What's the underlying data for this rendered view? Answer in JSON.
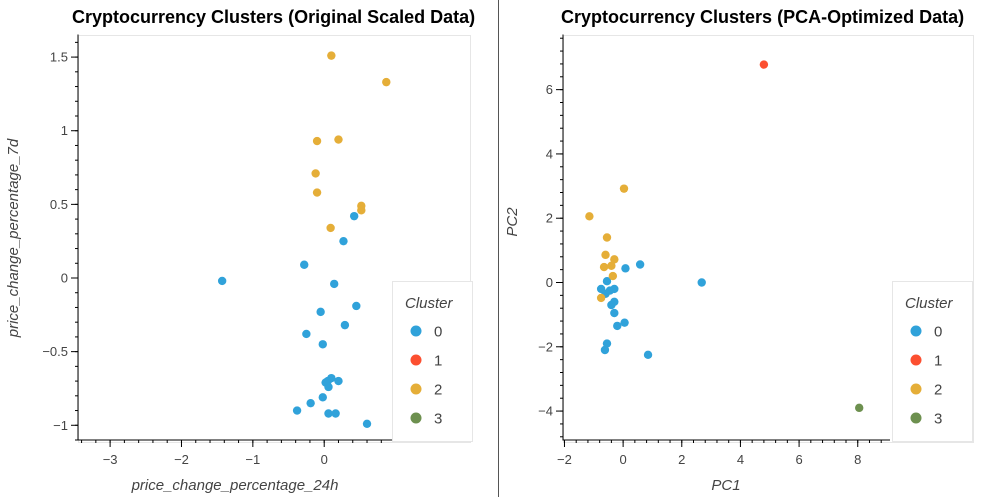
{
  "colors": {
    "cluster_0": "#30a2da",
    "cluster_1": "#fc4f30",
    "cluster_2": "#e5ae38",
    "cluster_3": "#6d904f",
    "axis": "#000000",
    "frame": "#e6e6e6",
    "divider": "#555555"
  },
  "chart_data": [
    {
      "type": "scatter",
      "title": "Cryptocurrency Clusters (Original Scaled Data)",
      "xlabel": "price_change_percentage_24h",
      "ylabel": "price_change_percentage_7d",
      "xlim": [
        -3.45,
        0.95
      ],
      "ylim": [
        -1.1,
        1.65
      ],
      "xticks": [
        -3,
        -2,
        -1,
        0
      ],
      "yticks": [
        -1,
        -0.5,
        0,
        0.5,
        1,
        1.5
      ],
      "xtick_labels": [
        "−3",
        "−2",
        "−1",
        "0"
      ],
      "ytick_labels": [
        "−1",
        "−0.5",
        "0",
        "0.5",
        "1",
        "1.5"
      ],
      "legend": {
        "title": "Cluster",
        "position": "right",
        "labels": [
          "0",
          "1",
          "2",
          "3"
        ]
      },
      "points": [
        {
          "x": -1.43,
          "y": -0.02,
          "cluster": 0
        },
        {
          "x": -0.28,
          "y": 0.09,
          "cluster": 0
        },
        {
          "x": 0.42,
          "y": 0.42,
          "cluster": 0
        },
        {
          "x": 0.27,
          "y": 0.25,
          "cluster": 0
        },
        {
          "x": 0.14,
          "y": -0.04,
          "cluster": 0
        },
        {
          "x": 0.45,
          "y": -0.19,
          "cluster": 0
        },
        {
          "x": -0.05,
          "y": -0.23,
          "cluster": 0
        },
        {
          "x": 0.29,
          "y": -0.32,
          "cluster": 0
        },
        {
          "x": -0.25,
          "y": -0.38,
          "cluster": 0
        },
        {
          "x": -0.02,
          "y": -0.45,
          "cluster": 0
        },
        {
          "x": 0.1,
          "y": -0.68,
          "cluster": 0
        },
        {
          "x": 0.05,
          "y": -0.7,
          "cluster": 0
        },
        {
          "x": 0.2,
          "y": -0.7,
          "cluster": 0
        },
        {
          "x": 0.02,
          "y": -0.71,
          "cluster": 0
        },
        {
          "x": 0.06,
          "y": -0.74,
          "cluster": 0
        },
        {
          "x": -0.02,
          "y": -0.81,
          "cluster": 0
        },
        {
          "x": -0.19,
          "y": -0.85,
          "cluster": 0
        },
        {
          "x": -0.38,
          "y": -0.9,
          "cluster": 0
        },
        {
          "x": 0.06,
          "y": -0.92,
          "cluster": 0
        },
        {
          "x": 0.16,
          "y": -0.92,
          "cluster": 0
        },
        {
          "x": 0.6,
          "y": -0.99,
          "cluster": 0
        },
        {
          "x": 0.1,
          "y": 1.51,
          "cluster": 2
        },
        {
          "x": 0.87,
          "y": 1.33,
          "cluster": 2
        },
        {
          "x": -0.1,
          "y": 0.93,
          "cluster": 2
        },
        {
          "x": 0.2,
          "y": 0.94,
          "cluster": 2
        },
        {
          "x": -0.12,
          "y": 0.71,
          "cluster": 2
        },
        {
          "x": -0.1,
          "y": 0.58,
          "cluster": 2
        },
        {
          "x": 0.52,
          "y": 0.49,
          "cluster": 2
        },
        {
          "x": 0.52,
          "y": 0.46,
          "cluster": 2
        },
        {
          "x": 0.09,
          "y": 0.34,
          "cluster": 2
        }
      ]
    },
    {
      "type": "scatter",
      "title": "Cryptocurrency Clusters (PCA-Optimized Data)",
      "xlabel": "PC1",
      "ylabel": "PC2",
      "xlim": [
        -2.05,
        9.1
      ],
      "ylim": [
        -4.9,
        7.7
      ],
      "xticks": [
        -2,
        0,
        2,
        4,
        6,
        8
      ],
      "yticks": [
        -4,
        -2,
        0,
        2,
        4,
        6
      ],
      "xtick_labels": [
        "−2",
        "0",
        "2",
        "4",
        "6",
        "8"
      ],
      "ytick_labels": [
        "−4",
        "−2",
        "0",
        "2",
        "4",
        "6"
      ],
      "legend": {
        "title": "Cluster",
        "position": "right",
        "labels": [
          "0",
          "1",
          "2",
          "3"
        ]
      },
      "points": [
        {
          "x": 2.68,
          "y": 0.0,
          "cluster": 0
        },
        {
          "x": 0.58,
          "y": 0.56,
          "cluster": 0
        },
        {
          "x": 0.08,
          "y": 0.44,
          "cluster": 0
        },
        {
          "x": -0.55,
          "y": 0.04,
          "cluster": 0
        },
        {
          "x": -0.75,
          "y": -0.2,
          "cluster": 0
        },
        {
          "x": -0.45,
          "y": -0.25,
          "cluster": 0
        },
        {
          "x": -0.3,
          "y": -0.2,
          "cluster": 0
        },
        {
          "x": -0.6,
          "y": -0.35,
          "cluster": 0
        },
        {
          "x": -0.4,
          "y": -0.7,
          "cluster": 0
        },
        {
          "x": -0.3,
          "y": -0.6,
          "cluster": 0
        },
        {
          "x": -0.3,
          "y": -0.95,
          "cluster": 0
        },
        {
          "x": -0.2,
          "y": -1.35,
          "cluster": 0
        },
        {
          "x": 0.05,
          "y": -1.25,
          "cluster": 0
        },
        {
          "x": -0.55,
          "y": -1.9,
          "cluster": 0
        },
        {
          "x": -0.62,
          "y": -2.1,
          "cluster": 0
        },
        {
          "x": 0.85,
          "y": -2.25,
          "cluster": 0
        },
        {
          "x": 4.8,
          "y": 6.78,
          "cluster": 1
        },
        {
          "x": 0.03,
          "y": 2.92,
          "cluster": 2
        },
        {
          "x": -1.15,
          "y": 2.06,
          "cluster": 2
        },
        {
          "x": -0.55,
          "y": 1.4,
          "cluster": 2
        },
        {
          "x": -0.6,
          "y": 0.86,
          "cluster": 2
        },
        {
          "x": -0.3,
          "y": 0.72,
          "cluster": 2
        },
        {
          "x": -0.4,
          "y": 0.52,
          "cluster": 2
        },
        {
          "x": -0.65,
          "y": 0.48,
          "cluster": 2
        },
        {
          "x": -0.35,
          "y": 0.2,
          "cluster": 2
        },
        {
          "x": -0.75,
          "y": -0.48,
          "cluster": 2
        },
        {
          "x": 8.05,
          "y": -3.9,
          "cluster": 3
        }
      ]
    }
  ]
}
